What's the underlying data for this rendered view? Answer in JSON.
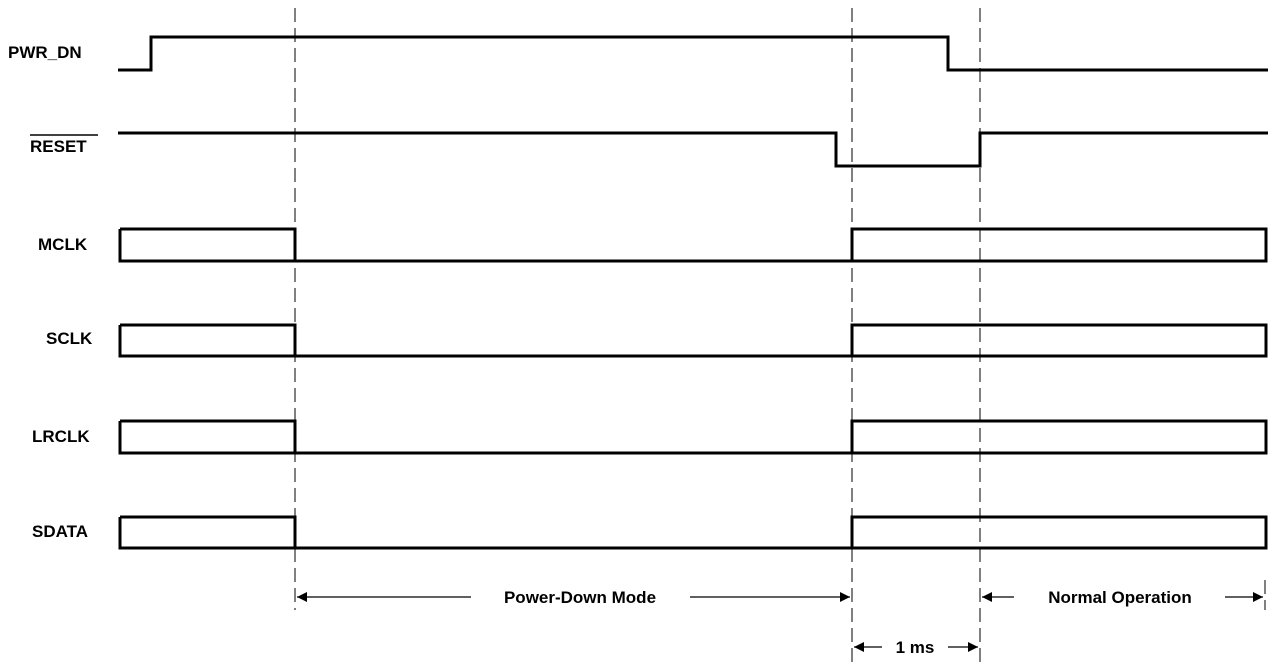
{
  "signals": {
    "pwr_dn": "PWR_DN",
    "reset": "RESET",
    "mclk": "MCLK",
    "sclk": "SCLK",
    "lrclk": "LRCLK",
    "sdata": "SDATA"
  },
  "annotations": {
    "power_down_mode": "Power-Down Mode",
    "normal_operation": "Normal Operation",
    "delay": "1 ms"
  },
  "colors": {
    "line": "#000000",
    "background": "#ffffff"
  }
}
